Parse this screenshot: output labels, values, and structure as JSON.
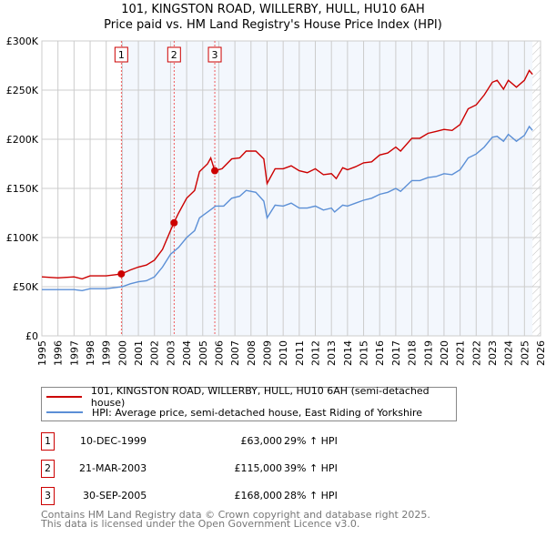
{
  "chart_data": {
    "type": "line",
    "title": "101, KINGSTON ROAD, WILLERBY, HULL, HU10 6AH",
    "subtitle": "Price paid vs. HM Land Registry's House Price Index (HPI)",
    "xlim": [
      1995,
      2026
    ],
    "ylim": [
      0,
      300000
    ],
    "yticks": [
      {
        "v": 0,
        "l": "£0"
      },
      {
        "v": 50000,
        "l": "£50K"
      },
      {
        "v": 100000,
        "l": "£100K"
      },
      {
        "v": 150000,
        "l": "£150K"
      },
      {
        "v": 200000,
        "l": "£200K"
      },
      {
        "v": 250000,
        "l": "£250K"
      },
      {
        "v": 300000,
        "l": "£300K"
      }
    ],
    "xticks": [
      "1995",
      "1996",
      "1997",
      "1998",
      "1999",
      "2000",
      "2001",
      "2002",
      "2003",
      "2004",
      "2005",
      "2006",
      "2007",
      "2008",
      "2009",
      "2010",
      "2011",
      "2012",
      "2013",
      "2014",
      "2015",
      "2016",
      "2017",
      "2018",
      "2019",
      "2020",
      "2021",
      "2022",
      "2023",
      "2024",
      "2025",
      "2026"
    ],
    "grid": true,
    "series": [
      {
        "name": "101, KINGSTON ROAD, WILLERBY, HULL, HU10 6AH (semi-detached house)",
        "color": "#cc0000",
        "x": [
          1995,
          1996,
          1997,
          1997.5,
          1998,
          1999,
          1999.95,
          2000.5,
          2001,
          2001.5,
          2002,
          2002.5,
          2003.2,
          2003.5,
          2004,
          2004.5,
          2004.8,
          2005.3,
          2005.5,
          2005.75,
          2006.2,
          2006.8,
          2007.3,
          2007.7,
          2008.3,
          2008.8,
          2009.0,
          2009.5,
          2010,
          2010.5,
          2011,
          2011.5,
          2012,
          2012.5,
          2013,
          2013.3,
          2013.7,
          2014,
          2014.5,
          2015,
          2015.5,
          2016,
          2016.5,
          2017,
          2017.3,
          2018,
          2018.5,
          2019,
          2019.5,
          2020,
          2020.5,
          2021,
          2021.5,
          2022,
          2022.5,
          2023,
          2023.3,
          2023.7,
          2024,
          2024.5,
          2025,
          2025.3,
          2025.5
        ],
        "y": [
          60,
          59,
          60,
          58,
          61,
          61,
          63,
          67,
          70,
          72,
          77,
          88,
          115,
          125,
          140,
          148,
          167,
          175,
          181,
          168,
          170,
          180,
          181,
          188,
          188,
          180,
          155,
          170,
          170,
          173,
          168,
          166,
          170,
          164,
          165,
          160,
          171,
          169,
          172,
          176,
          177,
          184,
          186,
          192,
          188,
          201,
          201,
          206,
          208,
          210,
          209,
          215,
          231,
          235,
          245,
          258,
          260,
          251,
          260,
          253,
          260,
          270,
          266
        ]
      },
      {
        "name": "HPI: Average price, semi-detached house, East Riding of Yorkshire",
        "color": "#5b8fd6",
        "x": [
          1995,
          1996,
          1997,
          1997.5,
          1998,
          1999,
          2000,
          2000.5,
          2001,
          2001.5,
          2002,
          2002.5,
          2003,
          2003.5,
          2004,
          2004.5,
          2004.8,
          2005.3,
          2005.8,
          2006.3,
          2006.8,
          2007.3,
          2007.7,
          2008.3,
          2008.8,
          2009.0,
          2009.5,
          2010,
          2010.5,
          2011,
          2011.5,
          2012,
          2012.5,
          2013,
          2013.2,
          2013.7,
          2014,
          2014.5,
          2015,
          2015.5,
          2016,
          2016.5,
          2017,
          2017.3,
          2018,
          2018.5,
          2019,
          2019.5,
          2020,
          2020.5,
          2021,
          2021.5,
          2022,
          2022.5,
          2023,
          2023.3,
          2023.7,
          2024,
          2024.5,
          2025,
          2025.3,
          2025.5
        ],
        "y": [
          47,
          47,
          47,
          46,
          48,
          48,
          50,
          53,
          55,
          56,
          60,
          70,
          83,
          90,
          100,
          107,
          120,
          126,
          132,
          132,
          140,
          142,
          148,
          146,
          137,
          120,
          133,
          132,
          135,
          130,
          130,
          132,
          128,
          130,
          126,
          133,
          132,
          135,
          138,
          140,
          144,
          146,
          150,
          147,
          158,
          158,
          161,
          162,
          165,
          164,
          169,
          181,
          185,
          192,
          202,
          203,
          198,
          205,
          198,
          204,
          213,
          209
        ]
      }
    ],
    "y_units": 1000,
    "sales": [
      {
        "label": "1",
        "x": 1999.94,
        "date": "10-DEC-1999",
        "price": "£63,000",
        "value": 63000,
        "hpi": "29% ↑ HPI"
      },
      {
        "label": "2",
        "x": 2003.22,
        "date": "21-MAR-2003",
        "price": "£115,000",
        "value": 115000,
        "hpi": "39% ↑ HPI"
      },
      {
        "label": "3",
        "x": 2005.75,
        "date": "30-SEP-2005",
        "price": "£168,000",
        "value": 168000,
        "hpi": "28% ↑ HPI"
      }
    ],
    "legend_placement": "below"
  },
  "footer": {
    "line1": "Contains HM Land Registry data © Crown copyright and database right 2025.",
    "line2": "This data is licensed under the Open Government Licence v3.0."
  }
}
